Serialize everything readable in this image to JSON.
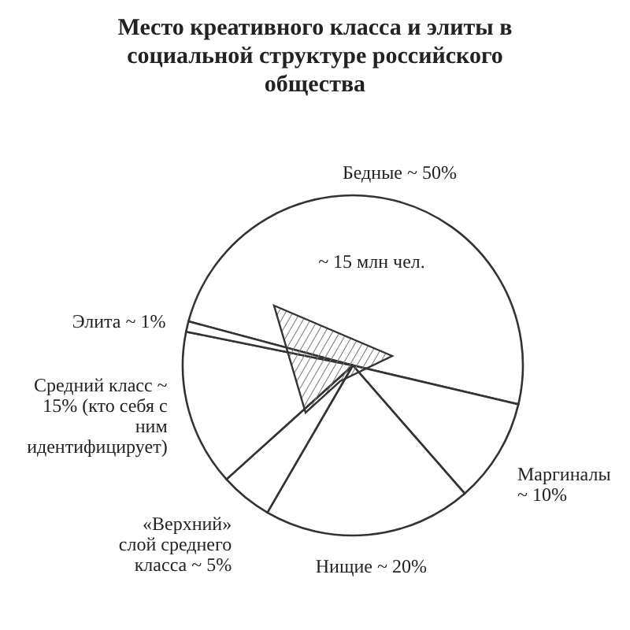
{
  "chart_data": {
    "type": "pie",
    "title": "Место креативного класса и элиты в социальной структуре российского общества",
    "categories": [
      "Бедные",
      "Маргиналы",
      "Нищие",
      "«Верхний» слой среднего класса",
      "Средний класс",
      "Элита"
    ],
    "values": [
      50,
      10,
      20,
      5,
      15,
      1
    ],
    "value_labels": [
      "~ 50%",
      "~ 10%",
      "~ 20%",
      "~ 5%",
      "~ 15% (кто себя с ним идентифицирует)",
      "~ 1%"
    ],
    "colors": [
      "#ffffff",
      "#ffffff",
      "#ffffff",
      "#ffffff",
      "#ffffff",
      "#ffffff"
    ],
    "annotations": [
      "~ 15 млн чел."
    ]
  }
}
